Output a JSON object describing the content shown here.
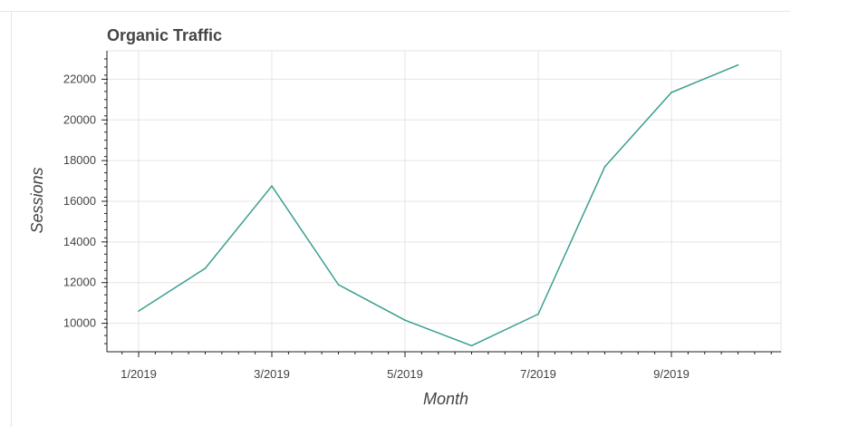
{
  "chart_data": {
    "type": "line",
    "title": "Organic Traffic",
    "xlabel": "Month",
    "ylabel": "Sessions",
    "x": [
      "1/2019",
      "2/2019",
      "3/2019",
      "4/2019",
      "5/2019",
      "6/2019",
      "7/2019",
      "8/2019",
      "9/2019",
      "10/2019"
    ],
    "x_tick_labels": [
      "1/2019",
      "3/2019",
      "5/2019",
      "7/2019",
      "9/2019"
    ],
    "y_ticks": [
      10000,
      12000,
      14000,
      16000,
      18000,
      20000,
      22000
    ],
    "ylim": [
      8600,
      23400
    ],
    "grid": true,
    "series": [
      {
        "values": [
          10600,
          12700,
          16750,
          11900,
          10150,
          8900,
          10450,
          17700,
          21350,
          22700
        ],
        "color": "#3a9e8f"
      }
    ]
  }
}
